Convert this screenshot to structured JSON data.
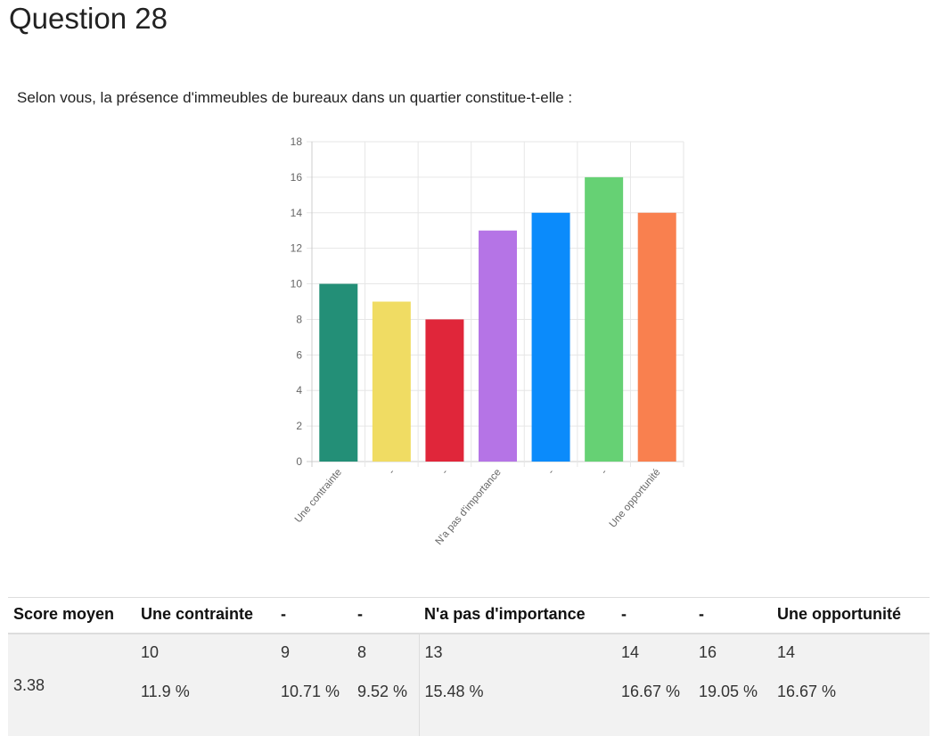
{
  "page": {
    "title": "Question 28",
    "question": "Selon vous, la présence d'immeubles de bureaux dans un quartier constitue-t-elle :"
  },
  "chart_data": {
    "type": "bar",
    "categories": [
      "Une contrainte",
      "-",
      "-",
      "N'a pas d'importance",
      "-",
      "-",
      "Une opportunité"
    ],
    "values": [
      10,
      9,
      8,
      13,
      14,
      16,
      14
    ],
    "colors": [
      "#238f77",
      "#f0dc63",
      "#e0263a",
      "#b574e6",
      "#0b8bfb",
      "#66d174",
      "#f9804f"
    ],
    "ylim": [
      0,
      18
    ],
    "yticks": [
      0,
      2,
      4,
      6,
      8,
      10,
      12,
      14,
      16,
      18
    ],
    "grid": true,
    "legend": "none"
  },
  "table": {
    "score_header": "Score moyen",
    "score_value": "3.38",
    "columns": [
      {
        "header": "Une contrainte",
        "count": "10",
        "percent": "11.9 %"
      },
      {
        "header": "-",
        "count": "9",
        "percent": "10.71 %"
      },
      {
        "header": "-",
        "count": "8",
        "percent": "9.52 %"
      },
      {
        "header": "N'a pas d'importance",
        "count": "13",
        "percent": "15.48 %"
      },
      {
        "header": "-",
        "count": "14",
        "percent": "16.67 %"
      },
      {
        "header": "-",
        "count": "16",
        "percent": "19.05 %"
      },
      {
        "header": "Une opportunité",
        "count": "14",
        "percent": "16.67 %"
      }
    ]
  }
}
